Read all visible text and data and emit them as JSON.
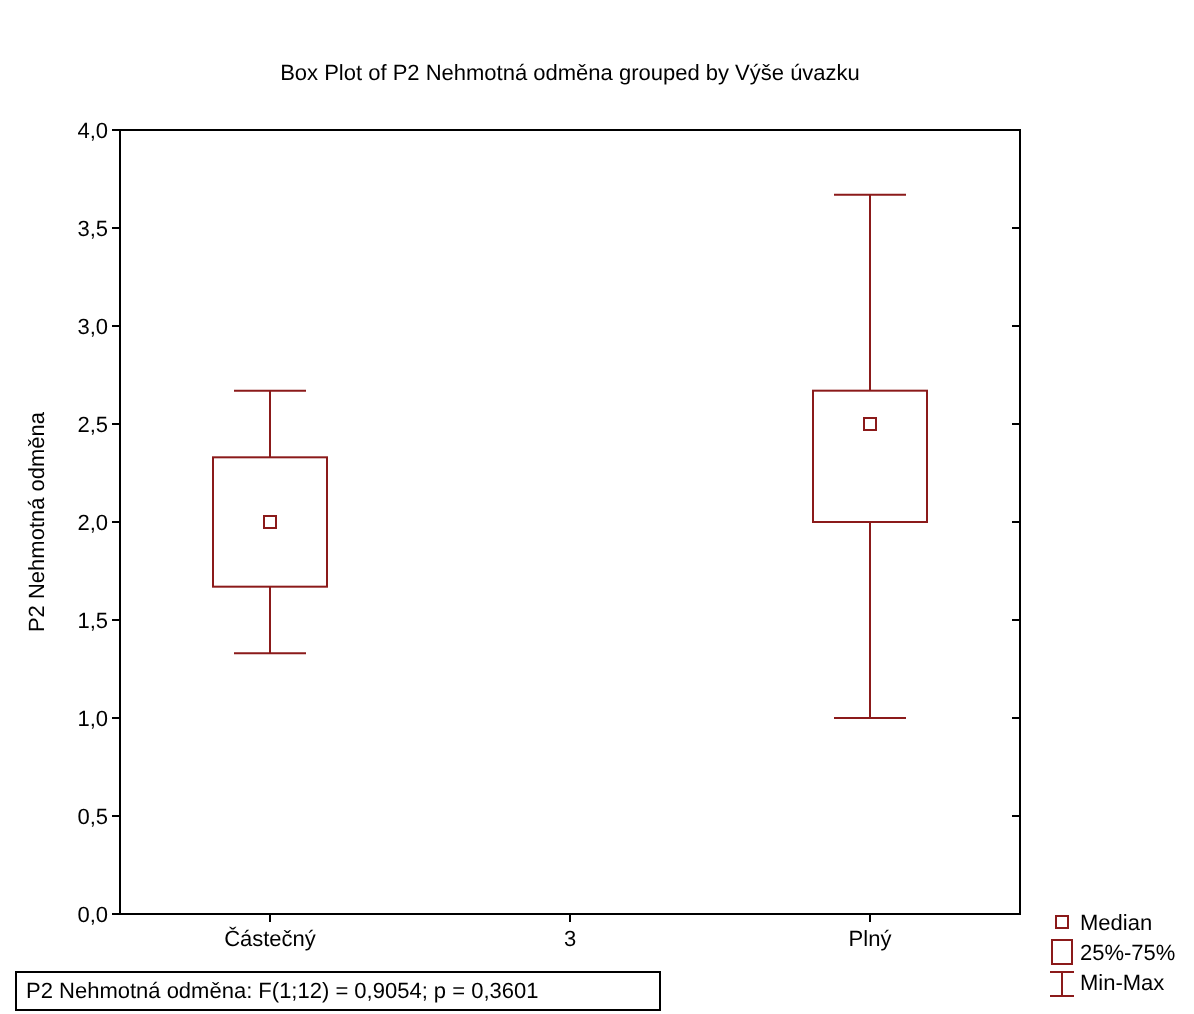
{
  "chart_data": {
    "type": "box",
    "title": "Box Plot of P2 Nehmotná odměna grouped by  Výše úvazku",
    "ylabel": "P2 Nehmotná odměna",
    "categories": [
      "Částečný",
      "3",
      "Plný"
    ],
    "boxes": [
      {
        "low": 1.33,
        "q1": 1.67,
        "median": 2.0,
        "q3": 2.33,
        "high": 2.67
      },
      null,
      {
        "low": 1.0,
        "q1": 2.0,
        "median": 2.5,
        "q3": 2.67,
        "high": 3.67
      }
    ],
    "color": "#8b1a1a",
    "ylim": [
      0,
      4
    ],
    "yticks": [
      {
        "value": 0,
        "label": "0,0"
      },
      {
        "value": 0.5,
        "label": "0,5"
      },
      {
        "value": 1,
        "label": "1,0"
      },
      {
        "value": 1.5,
        "label": "1,5"
      },
      {
        "value": 2,
        "label": "2,0"
      },
      {
        "value": 2.5,
        "label": "2,5"
      },
      {
        "value": 3,
        "label": "3,0"
      },
      {
        "value": 3.5,
        "label": "3,5"
      },
      {
        "value": 4,
        "label": "4,0"
      }
    ],
    "annotations": [
      "P2 Nehmotná odměna:  F(1;12) = 0,9054; p = 0,3601",
      "Median",
      "25%-75%",
      "Min-Max"
    ]
  }
}
